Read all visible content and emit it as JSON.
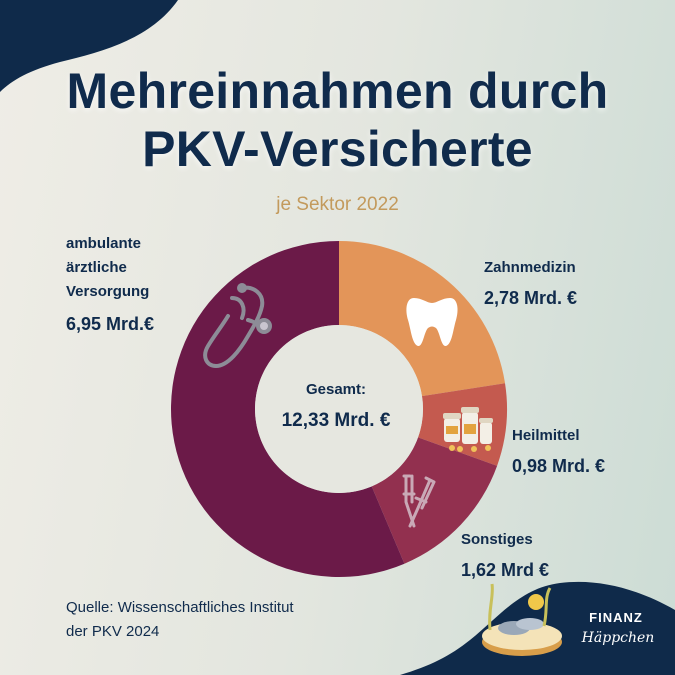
{
  "title": {
    "line1": "Mehreinnahmen durch",
    "line2": "PKV-Versicherte"
  },
  "subtitle": "je Sektor 2022",
  "chart_data": {
    "type": "pie",
    "variant": "donut",
    "title": "Mehreinnahmen durch PKV-Versicherte",
    "subtitle": "je Sektor 2022",
    "unit": "Mrd. €",
    "categories": [
      "Zahnmedizin",
      "Heilmittel",
      "Sonstiges",
      "ambulante ärztliche Versorgung"
    ],
    "values": [
      2.78,
      0.98,
      1.62,
      6.95
    ],
    "total": 12.33,
    "colors": [
      "#e39559",
      "#c45a4f",
      "#92304f",
      "#6b1a48"
    ],
    "center_label": "Gesamt:",
    "center_value": "12,33 Mrd. €",
    "icons": [
      "tooth-icon",
      "pill-bottles-icon",
      "crutches-icon",
      "stethoscope-icon"
    ]
  },
  "labels": {
    "ambulant": {
      "l1": "ambulante",
      "l2": "ärztliche",
      "l3": "Versorgung",
      "value": "6,95 Mrd.€"
    },
    "zahn": {
      "name": "Zahnmedizin",
      "value": "2,78 Mrd. €"
    },
    "heil": {
      "name": "Heilmittel",
      "value": "0,98 Mrd. €"
    },
    "sonst": {
      "name": "Sonstiges",
      "value": "1,62 Mrd €"
    }
  },
  "source": {
    "line1": "Quelle: Wissenschaftliches Institut",
    "line2": "der PKV 2024"
  },
  "logo": {
    "line1": "FINANZ",
    "line2": "Häppchen"
  },
  "colors": {
    "navy": "#102b4c",
    "gold": "#c39a5c"
  }
}
